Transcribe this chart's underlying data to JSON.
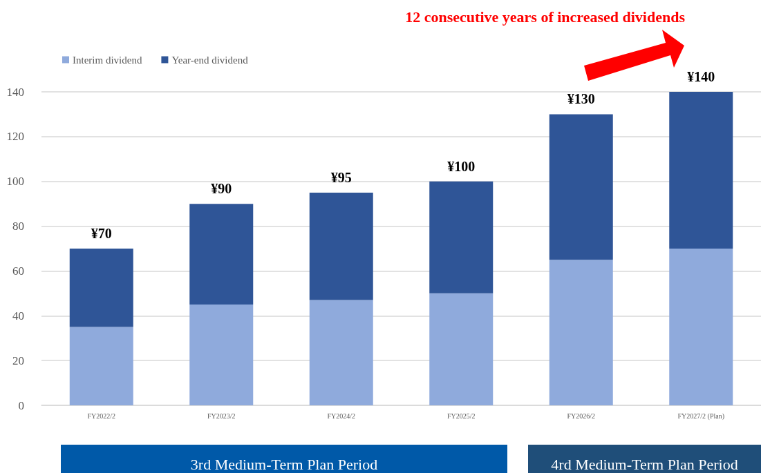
{
  "chart_data": {
    "type": "bar",
    "title": "12 consecutive years of increased dividends",
    "categories": [
      "FY2022/2",
      "FY2023/2",
      "FY2024/2",
      "FY2025/2",
      "FY2026/2",
      "FY2027/2 (Plan)"
    ],
    "stacked": true,
    "series": [
      {
        "name": "Interim dividend",
        "color": "#8faadc",
        "values": [
          35,
          45,
          47,
          50,
          65,
          70
        ]
      },
      {
        "name": "Year-end dividend",
        "color": "#2f5597",
        "values": [
          35,
          45,
          48,
          50,
          65,
          70
        ]
      }
    ],
    "totals": [
      "¥70",
      "¥90",
      "¥95",
      "¥100",
      "¥130",
      "¥140"
    ],
    "ylim": [
      0,
      140
    ],
    "yticks": [
      0,
      20,
      40,
      60,
      80,
      100,
      120,
      140
    ],
    "grid": "y",
    "legend": "top left",
    "annotations": [
      "3rd Medium-Term Plan Period",
      "4rd Medium-Term Plan Period"
    ]
  }
}
